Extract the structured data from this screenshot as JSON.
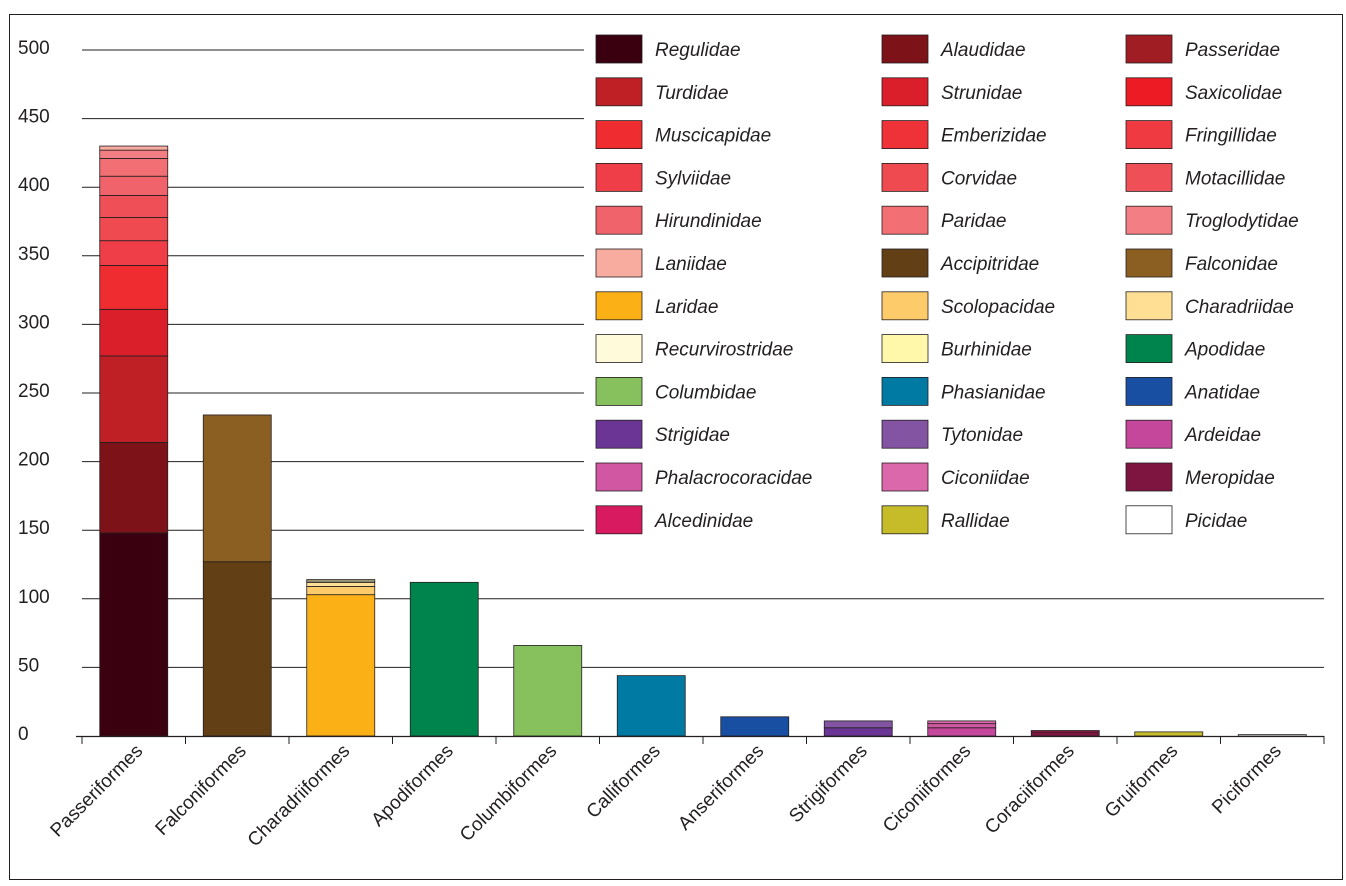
{
  "chart_data": {
    "type": "bar",
    "stacked": true,
    "title": "",
    "xlabel": "",
    "ylabel": "",
    "ylim": [
      0,
      500
    ],
    "yticks": [
      0,
      50,
      100,
      150,
      200,
      250,
      300,
      350,
      400,
      450,
      500
    ],
    "grid": "horizontal",
    "legend_position": "top-right",
    "categories": [
      "Passeriformes",
      "Falconiformes",
      "Charadriiformes",
      "Apodiformes",
      "Columbiformes",
      "Calliformes",
      "Anseriformes",
      "Strigiformes",
      "Ciconiiformes",
      "Coraciiformes",
      "Gruiformes",
      "Piciformes"
    ],
    "series": [
      {
        "name": "Regulidae",
        "color": "#3a0010",
        "values": [
          148,
          0,
          0,
          0,
          0,
          0,
          0,
          0,
          0,
          0,
          0,
          0
        ]
      },
      {
        "name": "Alaudidae",
        "color": "#7d1218",
        "values": [
          66,
          0,
          0,
          0,
          0,
          0,
          0,
          0,
          0,
          0,
          0,
          0
        ]
      },
      {
        "name": "Passeridae",
        "color": "#a11d24",
        "values": [
          0,
          0,
          0,
          0,
          0,
          0,
          0,
          0,
          0,
          0,
          0,
          0
        ]
      },
      {
        "name": "Turdidae",
        "color": "#bf2026",
        "values": [
          63,
          0,
          0,
          0,
          0,
          0,
          0,
          0,
          0,
          0,
          0,
          0
        ]
      },
      {
        "name": "Strunidae",
        "color": "#da1f2b",
        "values": [
          34,
          0,
          0,
          0,
          0,
          0,
          0,
          0,
          0,
          0,
          0,
          0
        ]
      },
      {
        "name": "Saxicolidae",
        "color": "#ed1c24",
        "values": [
          0,
          0,
          0,
          0,
          0,
          0,
          0,
          0,
          0,
          0,
          0,
          0
        ]
      },
      {
        "name": "Muscicapidae",
        "color": "#ef2c2f",
        "values": [
          32,
          0,
          0,
          0,
          0,
          0,
          0,
          0,
          0,
          0,
          0,
          0
        ]
      },
      {
        "name": "Emberizidae",
        "color": "#ee3237",
        "values": [
          0,
          0,
          0,
          0,
          0,
          0,
          0,
          0,
          0,
          0,
          0,
          0
        ]
      },
      {
        "name": "Fringillidae",
        "color": "#ee3a40",
        "values": [
          0,
          0,
          0,
          0,
          0,
          0,
          0,
          0,
          0,
          0,
          0,
          0
        ]
      },
      {
        "name": "Sylviidae",
        "color": "#ef3e47",
        "values": [
          18,
          0,
          0,
          0,
          0,
          0,
          0,
          0,
          0,
          0,
          0,
          0
        ]
      },
      {
        "name": "Corvidae",
        "color": "#ef4a50",
        "values": [
          17,
          0,
          0,
          0,
          0,
          0,
          0,
          0,
          0,
          0,
          0,
          0
        ]
      },
      {
        "name": "Motacillidae",
        "color": "#ef5058",
        "values": [
          16,
          0,
          0,
          0,
          0,
          0,
          0,
          0,
          0,
          0,
          0,
          0
        ]
      },
      {
        "name": "Hirundinidae",
        "color": "#f1636a",
        "values": [
          14,
          0,
          0,
          0,
          0,
          0,
          0,
          0,
          0,
          0,
          0,
          0
        ]
      },
      {
        "name": "Paridae",
        "color": "#f26f74",
        "values": [
          13,
          0,
          0,
          0,
          0,
          0,
          0,
          0,
          0,
          0,
          0,
          0
        ]
      },
      {
        "name": "Troglodytidae",
        "color": "#f37f85",
        "values": [
          6,
          0,
          0,
          0,
          0,
          0,
          0,
          0,
          0,
          0,
          0,
          0
        ]
      },
      {
        "name": "Laniidae",
        "color": "#f8aca0",
        "values": [
          3,
          0,
          0,
          0,
          0,
          0,
          0,
          0,
          0,
          0,
          0,
          0
        ]
      },
      {
        "name": "Accipitridae",
        "color": "#623f15",
        "values": [
          0,
          127,
          0,
          0,
          0,
          0,
          0,
          0,
          0,
          0,
          0,
          0
        ]
      },
      {
        "name": "Falconidae",
        "color": "#8b5e22",
        "values": [
          0,
          107,
          0,
          0,
          0,
          0,
          0,
          0,
          0,
          0,
          0,
          0
        ]
      },
      {
        "name": "Laridae",
        "color": "#fbb116",
        "values": [
          0,
          0,
          103,
          0,
          0,
          0,
          0,
          0,
          0,
          0,
          0,
          0
        ]
      },
      {
        "name": "Scolopacidae",
        "color": "#fecb6a",
        "values": [
          0,
          0,
          6,
          0,
          0,
          0,
          0,
          0,
          0,
          0,
          0,
          0
        ]
      },
      {
        "name": "Charadriidae",
        "color": "#ffdf94",
        "values": [
          0,
          0,
          3,
          0,
          0,
          0,
          0,
          0,
          0,
          0,
          0,
          0
        ]
      },
      {
        "name": "Recurvirostridae",
        "color": "#fffad9",
        "values": [
          0,
          0,
          1,
          0,
          0,
          0,
          0,
          0,
          0,
          0,
          0,
          0
        ]
      },
      {
        "name": "Burhinidae",
        "color": "#fff8aa",
        "values": [
          0,
          0,
          1,
          0,
          0,
          0,
          0,
          0,
          0,
          0,
          0,
          0
        ]
      },
      {
        "name": "Apodidae",
        "color": "#00844e",
        "values": [
          0,
          0,
          0,
          112,
          0,
          0,
          0,
          0,
          0,
          0,
          0,
          0
        ]
      },
      {
        "name": "Columbidae",
        "color": "#86c15d",
        "values": [
          0,
          0,
          0,
          0,
          66,
          0,
          0,
          0,
          0,
          0,
          0,
          0
        ]
      },
      {
        "name": "Phasianidae",
        "color": "#0079a3",
        "values": [
          0,
          0,
          0,
          0,
          0,
          44,
          0,
          0,
          0,
          0,
          0,
          0
        ]
      },
      {
        "name": "Anatidae",
        "color": "#194fa3",
        "values": [
          0,
          0,
          0,
          0,
          0,
          0,
          14,
          0,
          0,
          0,
          0,
          0
        ]
      },
      {
        "name": "Strigidae",
        "color": "#6b3595",
        "values": [
          0,
          0,
          0,
          0,
          0,
          0,
          0,
          6,
          0,
          0,
          0,
          0
        ]
      },
      {
        "name": "Tytonidae",
        "color": "#8254a2",
        "values": [
          0,
          0,
          0,
          0,
          0,
          0,
          0,
          5,
          0,
          0,
          0,
          0
        ]
      },
      {
        "name": "Ardeidae",
        "color": "#c4479c",
        "values": [
          0,
          0,
          0,
          0,
          0,
          0,
          0,
          0,
          6,
          0,
          0,
          0
        ]
      },
      {
        "name": "Phalacrocoracidae",
        "color": "#d157a2",
        "values": [
          0,
          0,
          0,
          0,
          0,
          0,
          0,
          0,
          3,
          0,
          0,
          0
        ]
      },
      {
        "name": "Ciconiidae",
        "color": "#db68ab",
        "values": [
          0,
          0,
          0,
          0,
          0,
          0,
          0,
          0,
          2,
          0,
          0,
          0
        ]
      },
      {
        "name": "Meropidae",
        "color": "#7e1440",
        "values": [
          0,
          0,
          0,
          0,
          0,
          0,
          0,
          0,
          0,
          3,
          0,
          0
        ]
      },
      {
        "name": "Alcedinidae",
        "color": "#d81b60",
        "values": [
          0,
          0,
          0,
          0,
          0,
          0,
          0,
          0,
          0,
          1,
          0,
          0
        ]
      },
      {
        "name": "Rallidae",
        "color": "#c6bc2a",
        "values": [
          0,
          0,
          0,
          0,
          0,
          0,
          0,
          0,
          0,
          0,
          3,
          0
        ]
      },
      {
        "name": "Picidae",
        "color": "#ffffff",
        "values": [
          0,
          0,
          0,
          0,
          0,
          0,
          0,
          0,
          0,
          0,
          0,
          1
        ]
      }
    ]
  }
}
